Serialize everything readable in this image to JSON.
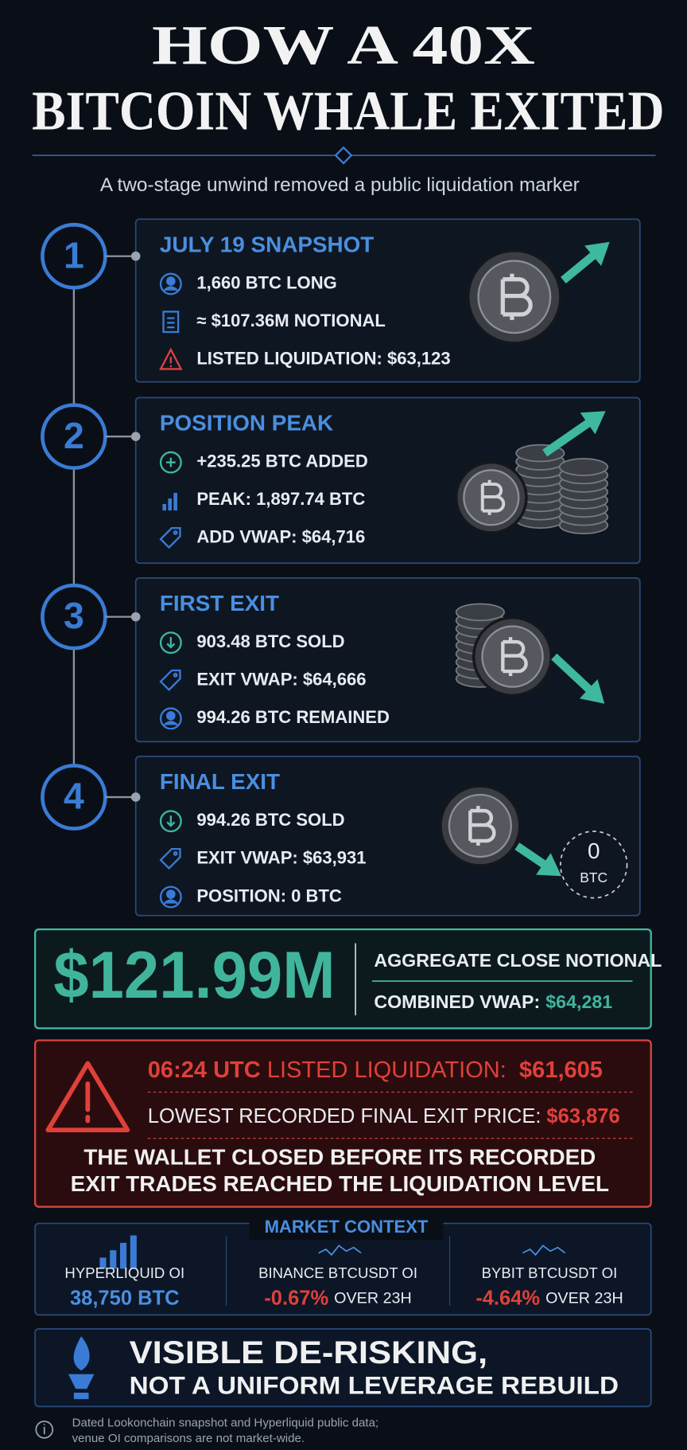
{
  "header": {
    "title": [
      "HOW A 40X",
      "BITCOIN WHALE EXITED"
    ],
    "subtitle": "A two-stage unwind removed a public liquidation marker"
  },
  "steps": [
    {
      "number": "1",
      "title": "JULY 19 SNAPSHOT",
      "items": [
        "1,660 BTC LONG",
        "≈ $107.36M NOTIONAL",
        "LISTED LIQUIDATION: $63,123"
      ]
    },
    {
      "number": "2",
      "title": "POSITION PEAK",
      "items": [
        "+235.25 BTC ADDED",
        "PEAK: 1,897.74 BTC",
        "ADD VWAP: $64,716"
      ]
    },
    {
      "number": "3",
      "title": "FIRST EXIT",
      "items": [
        "903.48 BTC SOLD",
        "EXIT VWAP: $64,666",
        "994.26 BTC REMAINED"
      ]
    },
    {
      "number": "4",
      "title": "FINAL EXIT",
      "items": [
        "994.26 BTC SOLD",
        "EXIT VWAP: $63,931",
        "POSITION: 0 BTC"
      ],
      "badge": [
        "0",
        "BTC"
      ]
    }
  ],
  "summary": {
    "amount": "$121.99M",
    "label": "AGGREGATE CLOSE NOTIONAL",
    "vwap_label": "COMBINED VWAP:",
    "vwap": "$64,281"
  },
  "alert": {
    "time": "06:24 UTC",
    "label": "LISTED LIQUIDATION:",
    "price": "$61,605",
    "lowest_label": "LOWEST RECORDED FINAL EXIT PRICE:",
    "lowest_price": "$63,876",
    "message": [
      "THE WALLET CLOSED BEFORE ITS RECORDED",
      "EXIT TRADES REACHED THE LIQUIDATION LEVEL"
    ]
  },
  "market": {
    "title": "MARKET CONTEXT",
    "cells": [
      {
        "label": "HYPERLIQUID OI",
        "value": "38,750 BTC"
      },
      {
        "label": "BINANCE BTCUSDT OI",
        "value": "-0.67%",
        "suffix": "OVER 23H"
      },
      {
        "label": "BYBIT BTCUSDT OI",
        "value": "-4.64%",
        "suffix": "OVER 23H"
      }
    ]
  },
  "conclusion": [
    "VISIBLE DE-RISKING,",
    "NOT A UNIFORM LEVERAGE REBUILD"
  ],
  "footer": [
    "Dated Lookonchain snapshot and Hyperliquid public data;",
    "venue OI comparisons are not market-wide."
  ]
}
